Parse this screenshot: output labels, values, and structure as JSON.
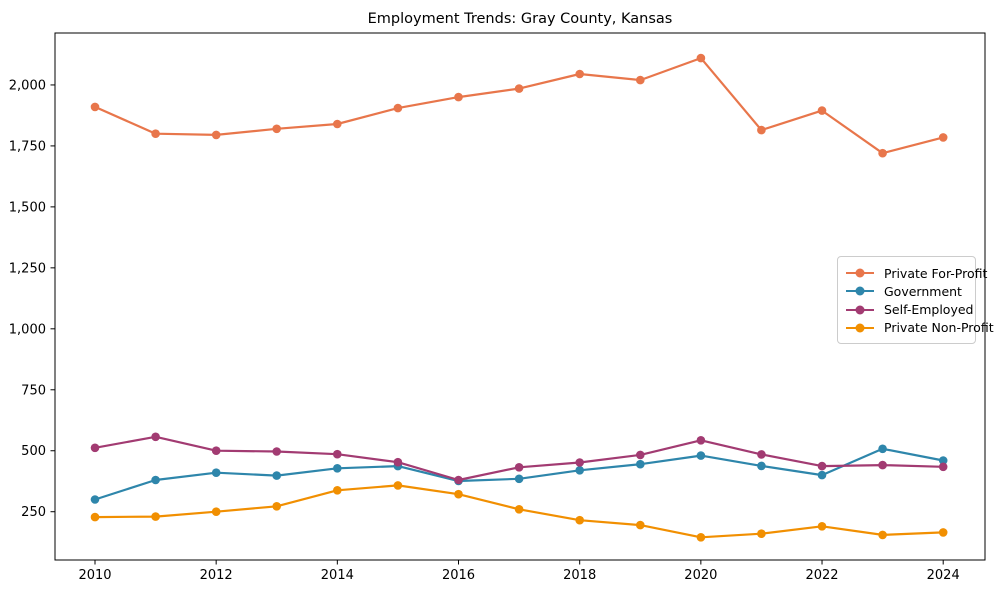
{
  "chart_data": {
    "type": "line",
    "title": "Employment Trends: Gray County, Kansas",
    "xlabel": "",
    "ylabel": "",
    "x": [
      2010,
      2011,
      2012,
      2013,
      2014,
      2015,
      2016,
      2017,
      2018,
      2019,
      2020,
      2021,
      2022,
      2023,
      2024
    ],
    "series": [
      {
        "name": "Private For-Profit",
        "color": "#E8764B",
        "values": [
          1910,
          1800,
          1795,
          1820,
          1840,
          1905,
          1950,
          1985,
          2045,
          2020,
          2110,
          1815,
          1895,
          1720,
          1785
        ]
      },
      {
        "name": "Government",
        "color": "#2E86AB",
        "values": [
          300,
          380,
          410,
          398,
          428,
          437,
          376,
          385,
          420,
          445,
          480,
          438,
          400,
          508,
          460
        ]
      },
      {
        "name": "Self-Employed",
        "color": "#A23B72",
        "values": [
          512,
          557,
          500,
          497,
          486,
          453,
          380,
          432,
          452,
          483,
          543,
          485,
          437,
          441,
          434
        ]
      },
      {
        "name": "Private Non-Profit",
        "color": "#F18F01",
        "values": [
          228,
          230,
          250,
          272,
          338,
          358,
          322,
          260,
          215,
          195,
          145,
          160,
          190,
          155,
          165
        ]
      }
    ],
    "xticks": [
      {
        "value": 2010,
        "label": "2010"
      },
      {
        "value": 2012,
        "label": "2012"
      },
      {
        "value": 2014,
        "label": "2014"
      },
      {
        "value": 2016,
        "label": "2016"
      },
      {
        "value": 2018,
        "label": "2018"
      },
      {
        "value": 2020,
        "label": "2020"
      },
      {
        "value": 2022,
        "label": "2022"
      },
      {
        "value": 2024,
        "label": "2024"
      }
    ],
    "yticks": [
      {
        "value": 250,
        "label": "250"
      },
      {
        "value": 500,
        "label": "500"
      },
      {
        "value": 750,
        "label": "750"
      },
      {
        "value": 1000,
        "label": "1,000"
      },
      {
        "value": 1250,
        "label": "1,250"
      },
      {
        "value": 1500,
        "label": "1,500"
      },
      {
        "value": 1750,
        "label": "1,750"
      },
      {
        "value": 2000,
        "label": "2,000"
      }
    ],
    "xlim": [
      2009.34,
      2024.69
    ],
    "ylim": [
      52,
      2213
    ],
    "grid": false,
    "legend_position": "center-right"
  }
}
